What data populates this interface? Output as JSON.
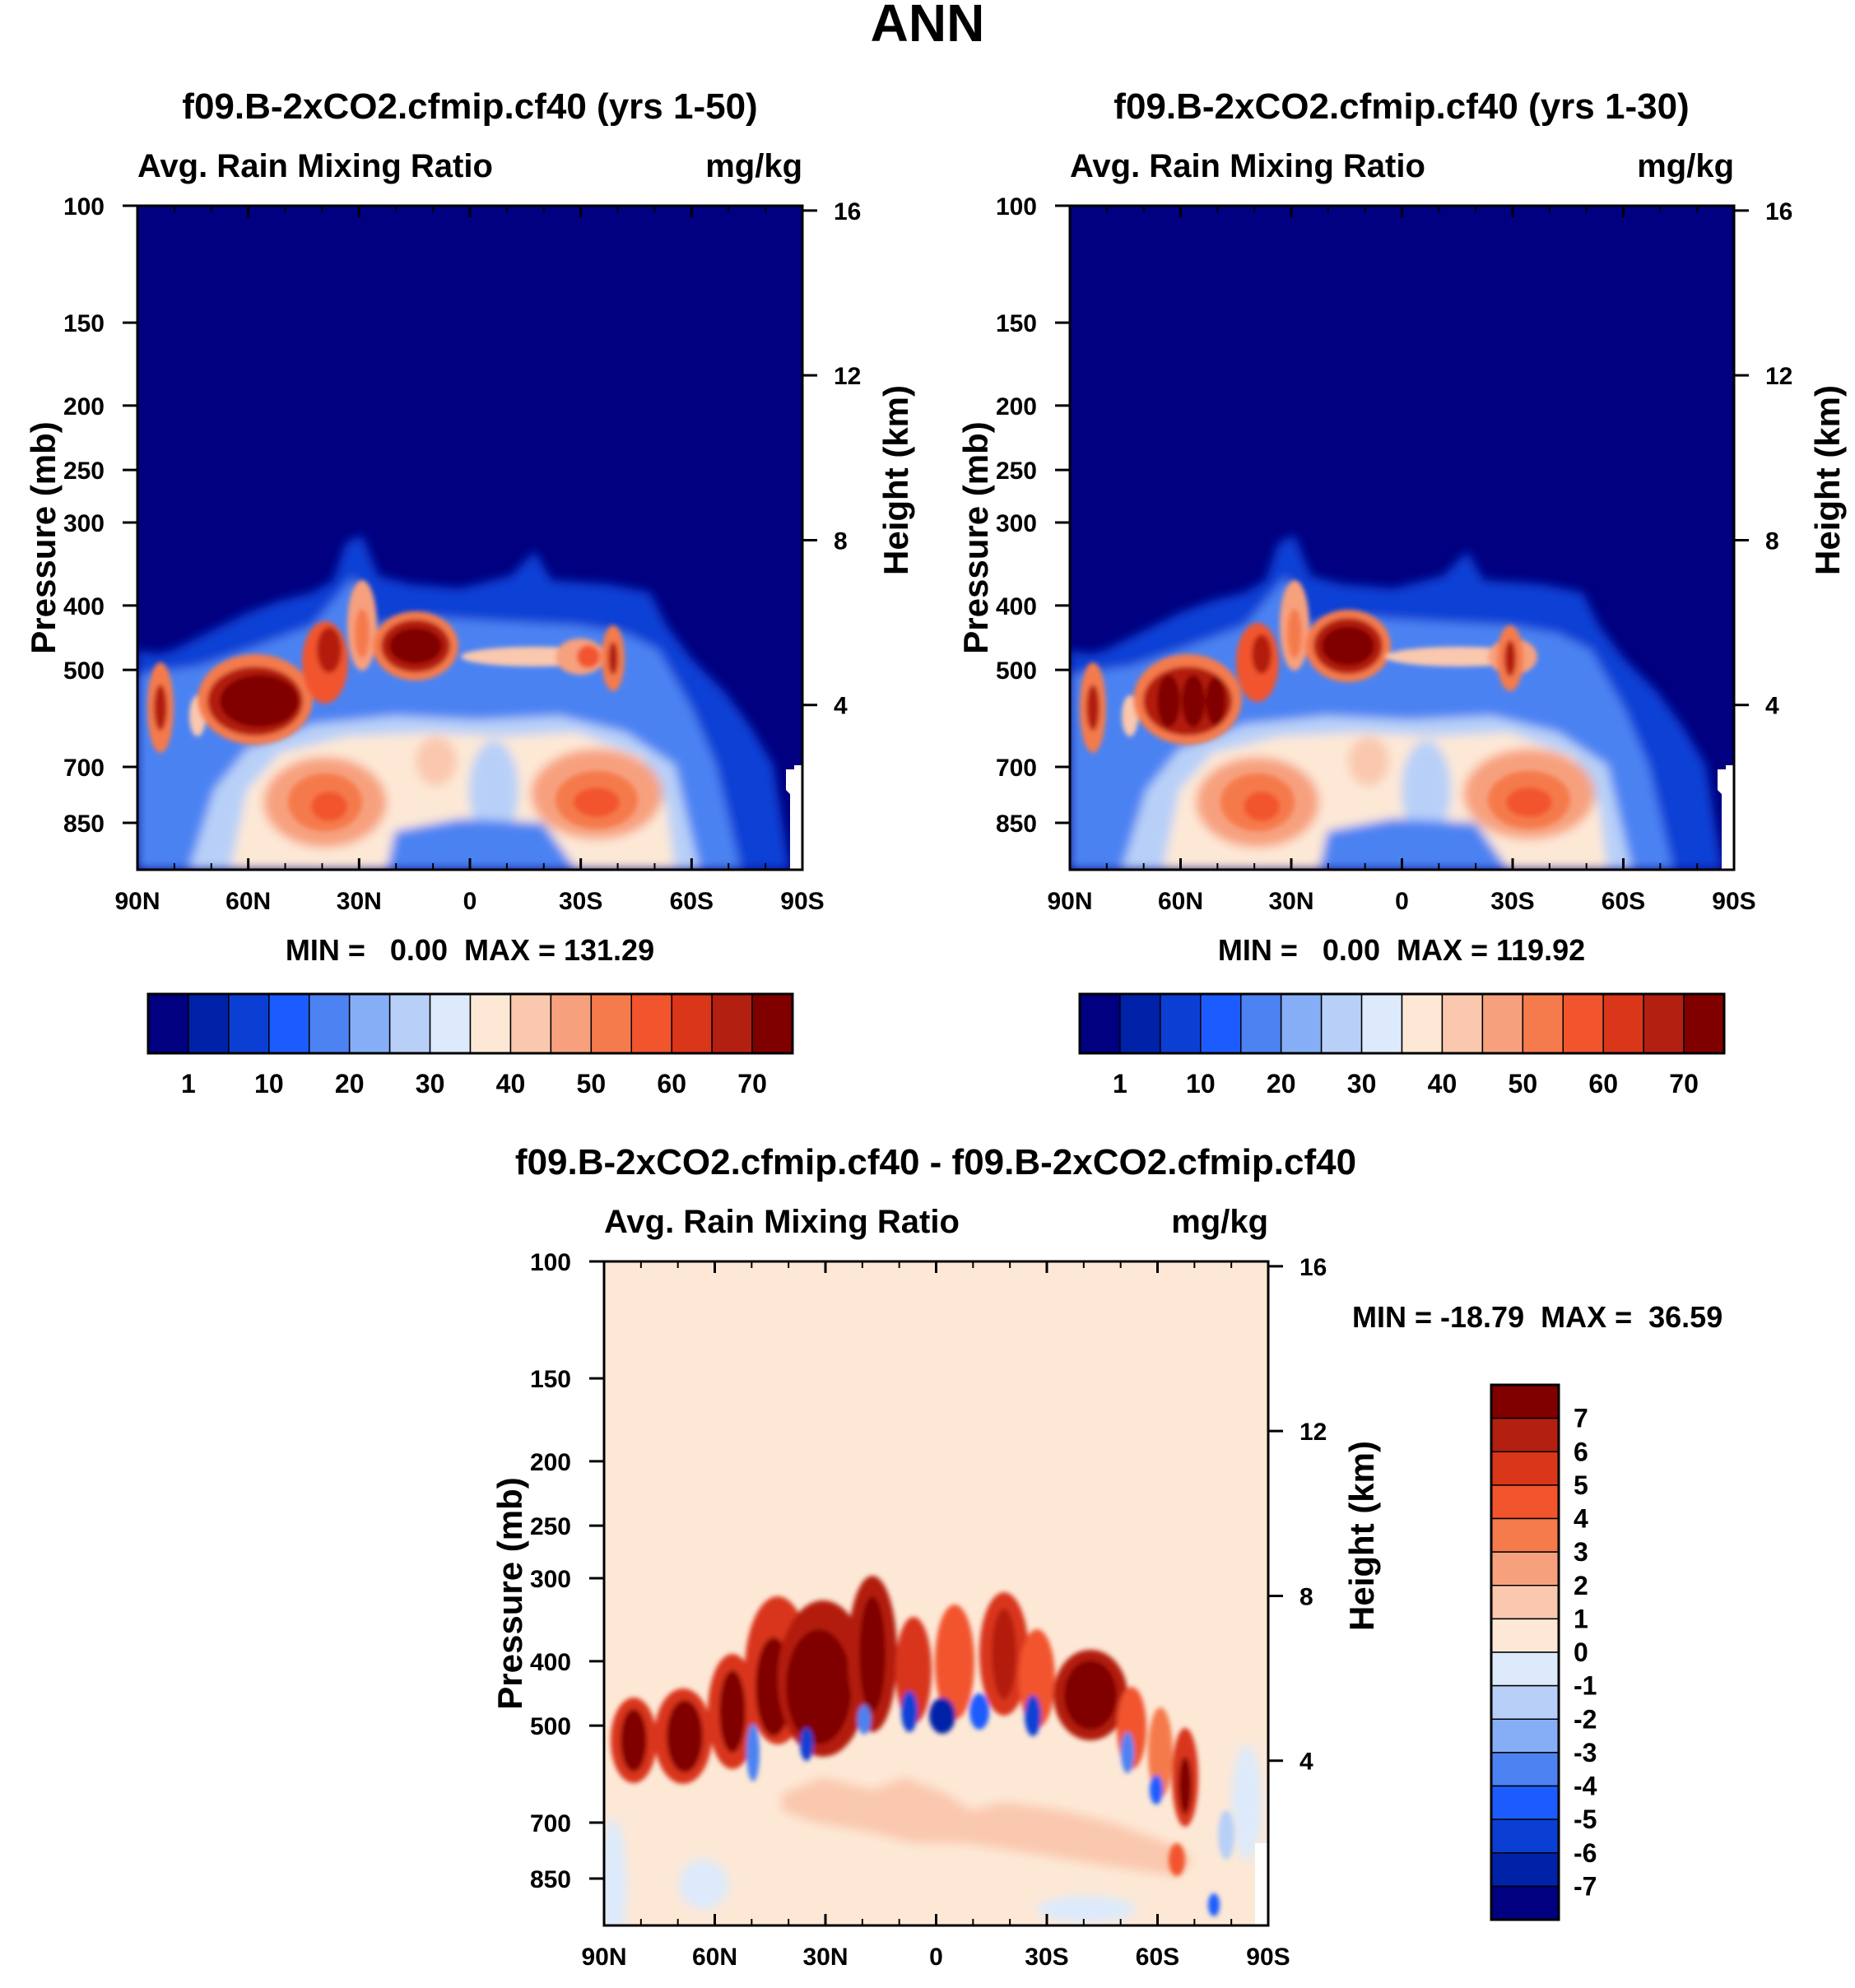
{
  "figure": {
    "title": "ANN"
  },
  "colors": {
    "plot_palette": [
      "#000080",
      "#0022a8",
      "#0b3fd4",
      "#1c5cff",
      "#4c82f2",
      "#86aef7",
      "#b8d0f8",
      "#dceafc",
      "#fde8d6",
      "#fac8ae",
      "#f7a07e",
      "#f57a4c",
      "#f2542d",
      "#d9361a",
      "#b31f10",
      "#800000"
    ],
    "diff_palette": [
      "#000080",
      "#0022a8",
      "#0b3fd4",
      "#1c5cff",
      "#4c82f2",
      "#86aef7",
      "#b8d0f8",
      "#dceafc",
      "#fde8d6",
      "#fac8ae",
      "#f7a07e",
      "#f57a4c",
      "#f2542d",
      "#d9361a",
      "#b31f10",
      "#800000"
    ]
  },
  "chart_data": [
    {
      "type": "heatmap",
      "title": "f09.B-2xCO2.cfmip.cf40 (yrs 1-50)",
      "left_label": "Avg. Rain Mixing Ratio",
      "right_label": "mg/kg",
      "ylabel": "Pressure (mb)",
      "ylabel_right": "Height (km)",
      "x_ticks": [
        "90N",
        "60N",
        "30N",
        "0",
        "30S",
        "60S",
        "90S"
      ],
      "x_range": [
        90,
        -90
      ],
      "y_ticks": [
        100,
        150,
        200,
        250,
        300,
        400,
        500,
        700,
        850
      ],
      "y_range_mb": [
        100,
        1000
      ],
      "height_ticks_km": [
        4,
        8,
        12,
        16
      ],
      "stats": "MIN =   0.00  MAX = 131.29",
      "colorbar_labels": [
        "1",
        "10",
        "20",
        "30",
        "40",
        "50",
        "60",
        "70"
      ],
      "features": [
        {
          "lat": 58,
          "p": 500,
          "value": 131
        },
        {
          "lat": 15,
          "p": 420,
          "value": 100
        },
        {
          "lat": 40,
          "p": 450,
          "value": 70
        },
        {
          "lat": 86,
          "p": 520,
          "value": 72
        },
        {
          "lat": -30,
          "p": 450,
          "value": 66
        },
        {
          "lat": 40,
          "p": 720,
          "value": 50
        },
        {
          "lat": -35,
          "p": 700,
          "value": 50
        }
      ]
    },
    {
      "type": "heatmap",
      "title": "f09.B-2xCO2.cfmip.cf40 (yrs 1-30)",
      "left_label": "Avg. Rain Mixing Ratio",
      "right_label": "mg/kg",
      "ylabel": "Pressure (mb)",
      "ylabel_right": "Height (km)",
      "x_ticks": [
        "90N",
        "60N",
        "30N",
        "0",
        "30S",
        "60S",
        "90S"
      ],
      "x_range": [
        90,
        -90
      ],
      "y_ticks": [
        100,
        150,
        200,
        250,
        300,
        400,
        500,
        700,
        850
      ],
      "y_range_mb": [
        100,
        1000
      ],
      "height_ticks_km": [
        4,
        8,
        12,
        16
      ],
      "stats": "MIN =   0.00  MAX = 119.92",
      "colorbar_labels": [
        "1",
        "10",
        "20",
        "30",
        "40",
        "50",
        "60",
        "70"
      ],
      "features": [
        {
          "lat": 58,
          "p": 500,
          "value": 120
        },
        {
          "lat": 15,
          "p": 420,
          "value": 100
        },
        {
          "lat": 40,
          "p": 450,
          "value": 65
        },
        {
          "lat": 86,
          "p": 520,
          "value": 70
        },
        {
          "lat": -30,
          "p": 460,
          "value": 70
        },
        {
          "lat": 40,
          "p": 720,
          "value": 50
        },
        {
          "lat": -35,
          "p": 700,
          "value": 52
        }
      ]
    },
    {
      "type": "heatmap",
      "title": "f09.B-2xCO2.cfmip.cf40 - f09.B-2xCO2.cfmip.cf40",
      "left_label": "Avg. Rain Mixing Ratio",
      "right_label": "mg/kg",
      "ylabel": "Pressure (mb)",
      "ylabel_right": "Height (km)",
      "x_ticks": [
        "90N",
        "60N",
        "30N",
        "0",
        "30S",
        "60S",
        "90S"
      ],
      "x_range": [
        90,
        -90
      ],
      "y_ticks": [
        100,
        150,
        200,
        250,
        300,
        400,
        500,
        700,
        850
      ],
      "y_range_mb": [
        100,
        1000
      ],
      "height_ticks_km": [
        4,
        8,
        12,
        16
      ],
      "stats": "MIN = -18.79  MAX =  36.59",
      "colorbar_labels": [
        "7",
        "6",
        "5",
        "4",
        "3",
        "2",
        "1",
        "0",
        "-1",
        "-2",
        "-3",
        "-4",
        "-5",
        "-6",
        "-7"
      ],
      "features": [
        {
          "lat": 36,
          "p": 420,
          "value": 36.59
        },
        {
          "lat": -35,
          "p": 450,
          "value": 12
        },
        {
          "lat": 0,
          "p": 480,
          "value": -18.79
        }
      ]
    }
  ]
}
